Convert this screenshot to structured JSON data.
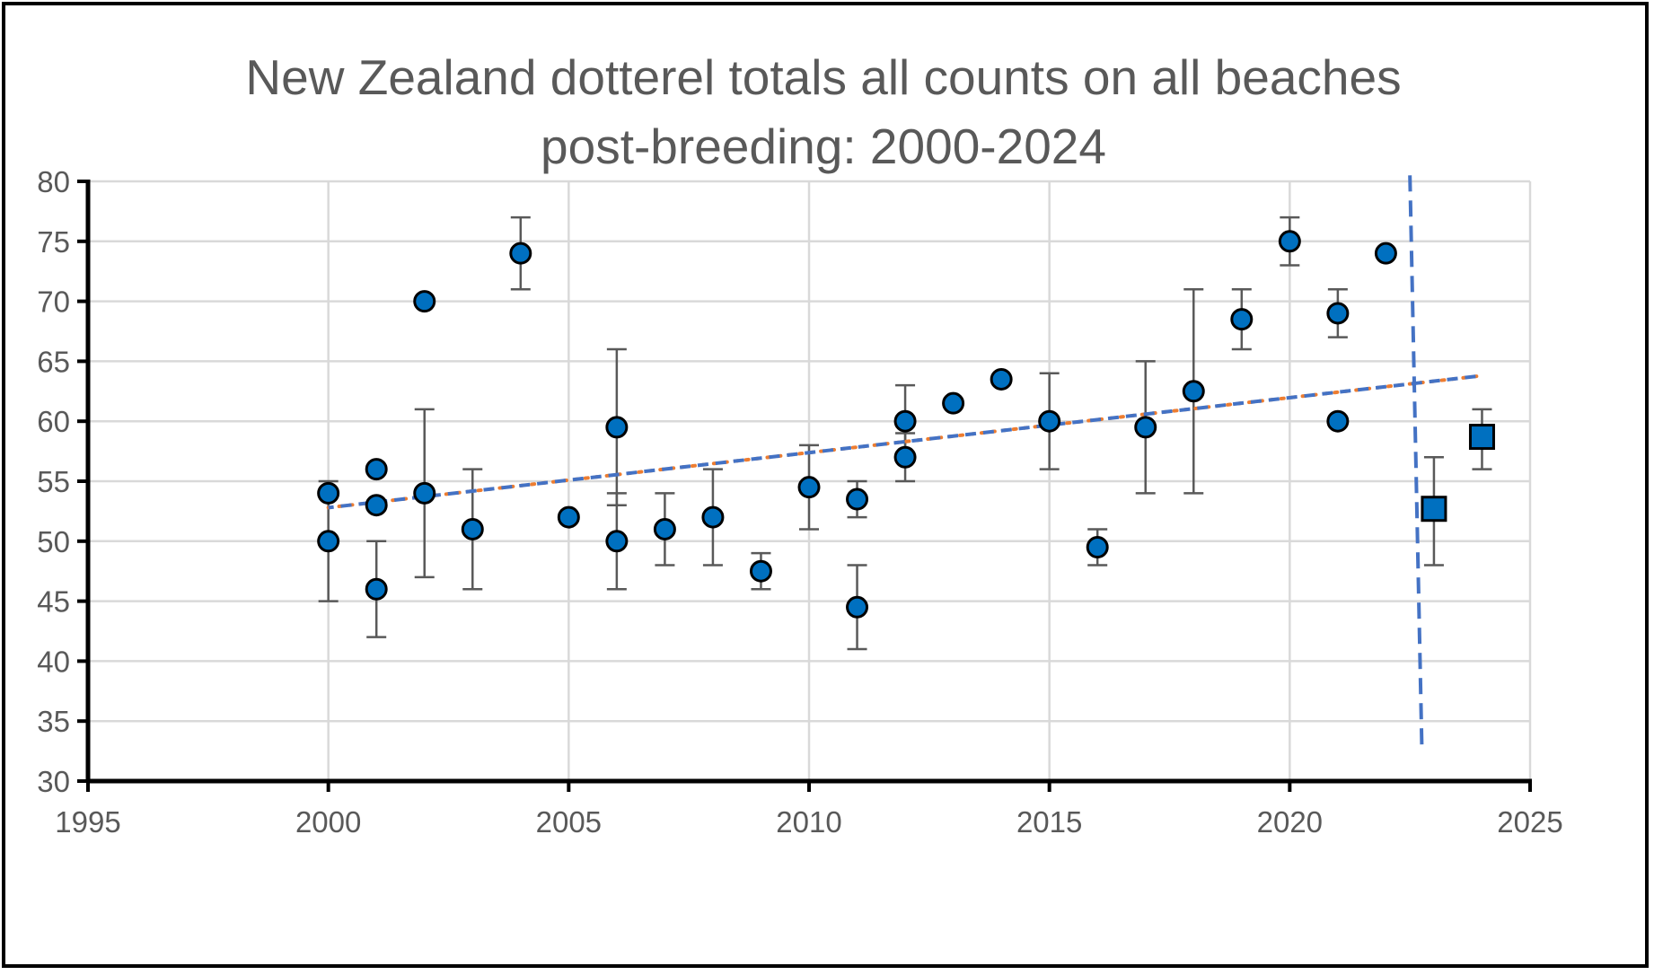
{
  "chart_data": {
    "type": "scatter",
    "title_lines": [
      "New Zealand dotterel totals all counts on all beaches",
      "post-breeding: 2000-2024"
    ],
    "xlabel": "",
    "ylabel": "",
    "xlim": [
      1995,
      2025
    ],
    "ylim": [
      30,
      80
    ],
    "x_ticks": [
      1995,
      2000,
      2005,
      2010,
      2015,
      2020,
      2025
    ],
    "y_ticks": [
      30,
      35,
      40,
      45,
      50,
      55,
      60,
      65,
      70,
      75,
      80
    ],
    "grid": true,
    "legend": "none",
    "colors": {
      "marker": "#0070C0",
      "marker_edge": "#000000",
      "error_bar": "#595959",
      "trend_line": "#4472C4",
      "trend_dots": "#ED7D31",
      "grid": "#D9D9D9",
      "axis": "#000000",
      "text": "#595959"
    },
    "series": [
      {
        "marker": "circle",
        "points": [
          {
            "x": 2000,
            "y": 54,
            "low": 54,
            "high": 55
          },
          {
            "x": 2000,
            "y": 50,
            "low": 45,
            "high": 54
          },
          {
            "x": 2001,
            "y": 56
          },
          {
            "x": 2001,
            "y": 53
          },
          {
            "x": 2001,
            "y": 46,
            "low": 42,
            "high": 50
          },
          {
            "x": 2002,
            "y": 70
          },
          {
            "x": 2002,
            "y": 54,
            "low": 47,
            "high": 61
          },
          {
            "x": 2003,
            "y": 51,
            "low": 46,
            "high": 56
          },
          {
            "x": 2004,
            "y": 74,
            "low": 71,
            "high": 77
          },
          {
            "x": 2005,
            "y": 52
          },
          {
            "x": 2006,
            "y": 59.5,
            "low": 53,
            "high": 66
          },
          {
            "x": 2006,
            "y": 50,
            "low": 46,
            "high": 54
          },
          {
            "x": 2007,
            "y": 51,
            "low": 48,
            "high": 54
          },
          {
            "x": 2008,
            "y": 52,
            "low": 48,
            "high": 56
          },
          {
            "x": 2009,
            "y": 47.5,
            "low": 46,
            "high": 49
          },
          {
            "x": 2010,
            "y": 54.5,
            "low": 51,
            "high": 58
          },
          {
            "x": 2011,
            "y": 53.5,
            "low": 52,
            "high": 55
          },
          {
            "x": 2011,
            "y": 44.5,
            "low": 41,
            "high": 48
          },
          {
            "x": 2012,
            "y": 60,
            "low": 57,
            "high": 63
          },
          {
            "x": 2012,
            "y": 57,
            "low": 55,
            "high": 59
          },
          {
            "x": 2013,
            "y": 61.5
          },
          {
            "x": 2014,
            "y": 63.5
          },
          {
            "x": 2015,
            "y": 60,
            "low": 56,
            "high": 64
          },
          {
            "x": 2016,
            "y": 49.5,
            "low": 48,
            "high": 51
          },
          {
            "x": 2017,
            "y": 59.5,
            "low": 54,
            "high": 65
          },
          {
            "x": 2018,
            "y": 62.5,
            "low": 54,
            "high": 71
          },
          {
            "x": 2019,
            "y": 68.5,
            "low": 66,
            "high": 71
          },
          {
            "x": 2020,
            "y": 75,
            "low": 73,
            "high": 77
          },
          {
            "x": 2021,
            "y": 69,
            "low": 67,
            "high": 71
          },
          {
            "x": 2021,
            "y": 60
          },
          {
            "x": 2022,
            "y": 74
          }
        ]
      },
      {
        "marker": "square",
        "points": [
          {
            "x": 2023,
            "y": 52.7,
            "low": 48,
            "high": 57
          },
          {
            "x": 2024,
            "y": 58.7,
            "low": 56,
            "high": 61
          }
        ]
      }
    ],
    "trend_line": {
      "x": [
        2000,
        2024
      ],
      "y": [
        52.8,
        63.8
      ]
    },
    "vertical_line": {
      "x_top": 2022.5,
      "y_top": 80.5,
      "x_bottom": 2022.75,
      "y_bottom": 32.5
    }
  }
}
